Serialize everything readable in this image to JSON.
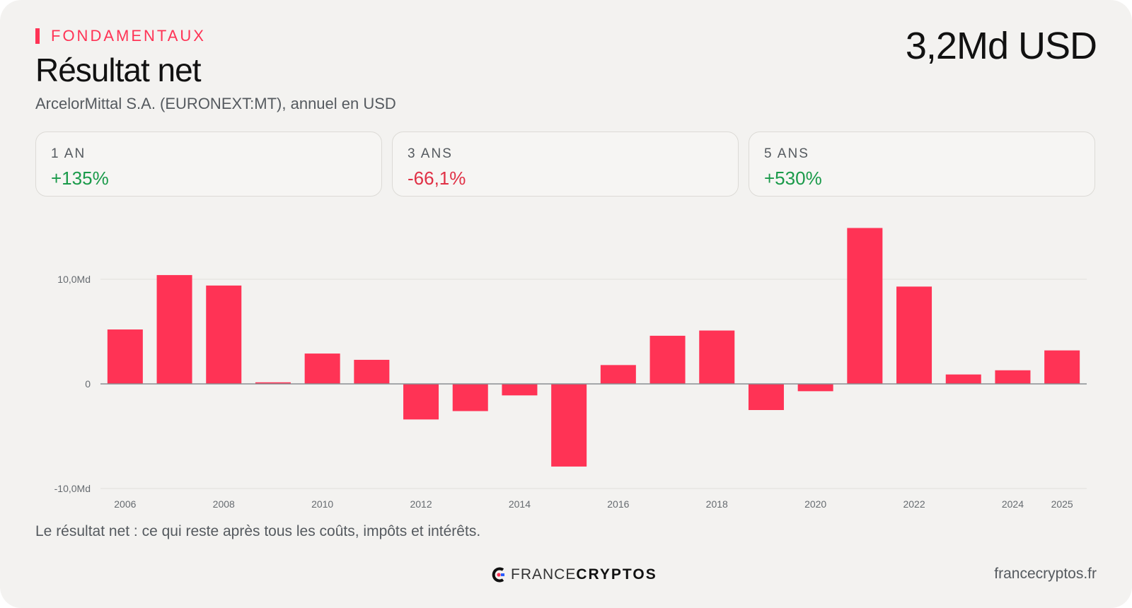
{
  "header": {
    "eyebrow": "FONDAMENTAUX",
    "title": "Résultat net",
    "subtitle": "ArcelorMittal S.A. (EURONEXT:MT), annuel en USD",
    "headline_value": "3,2Md USD"
  },
  "stats": [
    {
      "label": "1 AN",
      "value": "+135%",
      "trend": "positive"
    },
    {
      "label": "3 ANS",
      "value": "-66,1%",
      "trend": "negative"
    },
    {
      "label": "5 ANS",
      "value": "+530%",
      "trend": "positive"
    }
  ],
  "chart_data": {
    "type": "bar",
    "categories": [
      "2006",
      "2007",
      "2008",
      "2009",
      "2010",
      "2011",
      "2012",
      "2013",
      "2014",
      "2015",
      "2016",
      "2017",
      "2018",
      "2019",
      "2020",
      "2021",
      "2022",
      "2023",
      "2024",
      "2025"
    ],
    "values": [
      5.2,
      10.4,
      9.4,
      0.15,
      2.9,
      2.3,
      -3.4,
      -2.6,
      -1.1,
      -7.9,
      1.8,
      4.6,
      5.1,
      -2.5,
      -0.7,
      14.9,
      9.3,
      0.9,
      1.3,
      3.2
    ],
    "unit": "Md USD",
    "x_tick_labels": [
      "2006",
      "2008",
      "2010",
      "2012",
      "2014",
      "2016",
      "2018",
      "2020",
      "2022",
      "2024",
      "2025"
    ],
    "y_ticks": [
      {
        "value": 10,
        "label": "10,0Md"
      },
      {
        "value": 0,
        "label": "0"
      },
      {
        "value": -10,
        "label": "-10,0Md"
      }
    ],
    "ylim": [
      -10,
      15
    ],
    "grid": true,
    "bar_color": "#ff3355"
  },
  "footer": {
    "note": "Le résultat net : ce qui reste après tous les coûts, impôts et intérêts.",
    "brand_part1": "FRANCE",
    "brand_part2": "CRYPTOS",
    "site": "francecryptos.fr"
  },
  "colors": {
    "accent": "#ff3355",
    "positive": "#1a9a4a",
    "negative": "#e03045"
  }
}
